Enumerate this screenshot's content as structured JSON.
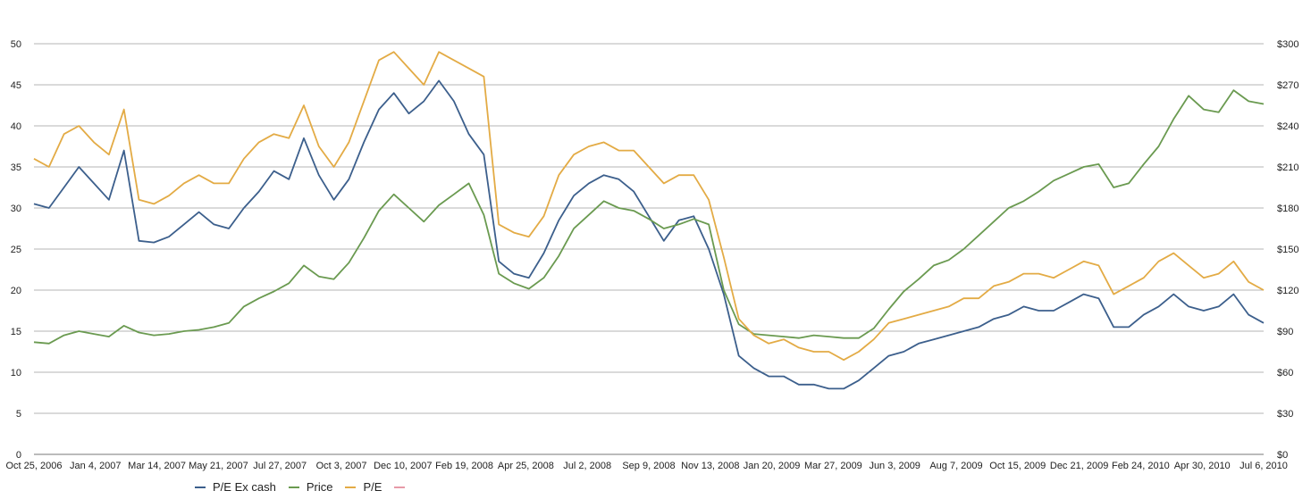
{
  "chart_data": {
    "type": "line",
    "title": "",
    "xlabel": "",
    "ylabel": "",
    "x_tick_labels": [
      "Oct 25, 2006",
      "Jan 4, 2007",
      "Mar 14, 2007",
      "May 21, 2007",
      "Jul 27, 2007",
      "Oct 3, 2007",
      "Dec 10, 2007",
      "Feb 19, 2008",
      "Apr 25, 2008",
      "Jul 2, 2008",
      "Sep 9, 2008",
      "Nov 13, 2008",
      "Jan 20, 2009",
      "Mar 27, 2009",
      "Jun 3, 2009",
      "Aug 7, 2009",
      "Oct 15, 2009",
      "Dec 21, 2009",
      "Feb 24, 2010",
      "Apr 30, 2010",
      "Jul 6, 2010"
    ],
    "y_left": {
      "min": 0,
      "max": 50,
      "ticks": [
        "0",
        "5",
        "10",
        "15",
        "20",
        "25",
        "30",
        "35",
        "40",
        "45",
        "50"
      ]
    },
    "y_right": {
      "min": 0,
      "max": 300,
      "ticks": [
        "$0",
        "$30",
        "$60",
        "$90",
        "$120",
        "$150",
        "$180",
        "$210",
        "$240",
        "$270",
        "$300"
      ]
    },
    "grid": true,
    "legend_position": "bottom-left",
    "series": [
      {
        "name": "P/E Ex cash",
        "axis": "left",
        "color": "#3c5f8c",
        "values": [
          30.5,
          30.0,
          32.5,
          35.0,
          33.0,
          31.0,
          37.0,
          26.0,
          25.8,
          26.5,
          28.0,
          29.5,
          28.0,
          27.5,
          30.0,
          32.0,
          34.5,
          33.5,
          38.5,
          34.0,
          31.0,
          33.5,
          38.0,
          42.0,
          44.0,
          41.5,
          43.0,
          45.5,
          43.0,
          39.0,
          36.5,
          23.5,
          22.0,
          21.5,
          24.5,
          28.5,
          31.5,
          33.0,
          34.0,
          33.5,
          32.0,
          29.0,
          26.0,
          28.5,
          29.0,
          25.0,
          19.5,
          12.0,
          10.5,
          9.5,
          9.5,
          8.5,
          8.5,
          8.0,
          8.0,
          9.0,
          10.5,
          12.0,
          12.5,
          13.5,
          14.0,
          14.5,
          15.0,
          15.5,
          16.5,
          17.0,
          18.0,
          17.5,
          17.5,
          18.5,
          19.5,
          19.0,
          15.5,
          15.5,
          17.0,
          18.0,
          19.5,
          18.0,
          17.5,
          18.0,
          19.5,
          17.0,
          16.0
        ]
      },
      {
        "name": "Price",
        "axis": "right",
        "color": "#6a9a50",
        "values": [
          82,
          81,
          87,
          90,
          88,
          86,
          94,
          89,
          87,
          88,
          90,
          91,
          93,
          96,
          108,
          114,
          119,
          125,
          138,
          130,
          128,
          140,
          158,
          178,
          190,
          180,
          170,
          182,
          190,
          198,
          175,
          132,
          125,
          121,
          129,
          145,
          165,
          175,
          185,
          180,
          178,
          172,
          165,
          168,
          172,
          168,
          120,
          95,
          88,
          87,
          86,
          85,
          87,
          86,
          85,
          85,
          92,
          106,
          119,
          128,
          138,
          142,
          150,
          160,
          170,
          180,
          185,
          192,
          200,
          205,
          210,
          212,
          195,
          198,
          212,
          225,
          245,
          262,
          252,
          250,
          266,
          258,
          256
        ]
      },
      {
        "name": "P/E",
        "axis": "left",
        "color": "#e3ab45",
        "values": [
          36.0,
          35.0,
          39.0,
          40.0,
          38.0,
          36.5,
          42.0,
          31.0,
          30.5,
          31.5,
          33.0,
          34.0,
          33.0,
          33.0,
          36.0,
          38.0,
          39.0,
          38.5,
          42.5,
          37.5,
          35.0,
          38.0,
          43.0,
          48.0,
          49.0,
          47.0,
          45.0,
          49.0,
          48.0,
          47.0,
          46.0,
          28.0,
          27.0,
          26.5,
          29.0,
          34.0,
          36.5,
          37.5,
          38.0,
          37.0,
          37.0,
          35.0,
          33.0,
          34.0,
          34.0,
          31.0,
          24.0,
          16.5,
          14.5,
          13.5,
          14.0,
          13.0,
          12.5,
          12.5,
          11.5,
          12.5,
          14.0,
          16.0,
          16.5,
          17.0,
          17.5,
          18.0,
          19.0,
          19.0,
          20.5,
          21.0,
          22.0,
          22.0,
          21.5,
          22.5,
          23.5,
          23.0,
          19.5,
          20.5,
          21.5,
          23.5,
          24.5,
          23.0,
          21.5,
          22.0,
          23.5,
          21.0,
          20.0
        ]
      },
      {
        "name": "",
        "axis": "left",
        "color": "#e79aa8",
        "values": []
      }
    ]
  }
}
